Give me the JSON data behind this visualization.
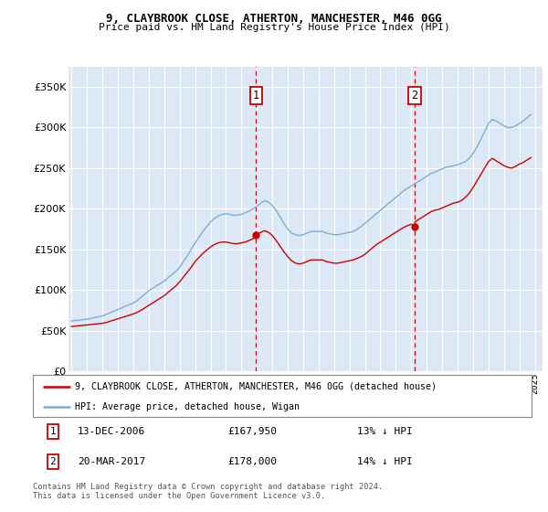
{
  "title1": "9, CLAYBROOK CLOSE, ATHERTON, MANCHESTER, M46 0GG",
  "title2": "Price paid vs. HM Land Registry's House Price Index (HPI)",
  "ylabel_values": [
    0,
    50000,
    100000,
    150000,
    200000,
    250000,
    300000,
    350000
  ],
  "ylim": [
    0,
    375000
  ],
  "xlim_start": 1994.8,
  "xlim_end": 2025.5,
  "background_color": "#ffffff",
  "plot_bg_color": "#dce8f5",
  "grid_color": "#ffffff",
  "hpi_color": "#7bafd4",
  "price_color": "#cc0000",
  "dashed_line_color": "#cc0000",
  "annotation_box_color": "#cc0000",
  "legend_label_red": "9, CLAYBROOK CLOSE, ATHERTON, MANCHESTER, M46 0GG (detached house)",
  "legend_label_blue": "HPI: Average price, detached house, Wigan",
  "purchase1_date": "13-DEC-2006",
  "purchase1_price": 167950,
  "purchase1_x": 2006.95,
  "purchase1_label": "1",
  "purchase1_hpi_pct": "13% ↓ HPI",
  "purchase2_date": "20-MAR-2017",
  "purchase2_price": 178000,
  "purchase2_x": 2017.22,
  "purchase2_label": "2",
  "purchase2_hpi_pct": "14% ↓ HPI",
  "footer1": "Contains HM Land Registry data © Crown copyright and database right 2024.",
  "footer2": "This data is licensed under the Open Government Licence v3.0.",
  "hpi_data_x": [
    1995.0,
    1995.25,
    1995.5,
    1995.75,
    1996.0,
    1996.25,
    1996.5,
    1996.75,
    1997.0,
    1997.25,
    1997.5,
    1997.75,
    1998.0,
    1998.25,
    1998.5,
    1998.75,
    1999.0,
    1999.25,
    1999.5,
    1999.75,
    2000.0,
    2000.25,
    2000.5,
    2000.75,
    2001.0,
    2001.25,
    2001.5,
    2001.75,
    2002.0,
    2002.25,
    2002.5,
    2002.75,
    2003.0,
    2003.25,
    2003.5,
    2003.75,
    2004.0,
    2004.25,
    2004.5,
    2004.75,
    2005.0,
    2005.25,
    2005.5,
    2005.75,
    2006.0,
    2006.25,
    2006.5,
    2006.75,
    2007.0,
    2007.25,
    2007.5,
    2007.75,
    2008.0,
    2008.25,
    2008.5,
    2008.75,
    2009.0,
    2009.25,
    2009.5,
    2009.75,
    2010.0,
    2010.25,
    2010.5,
    2010.75,
    2011.0,
    2011.25,
    2011.5,
    2011.75,
    2012.0,
    2012.25,
    2012.5,
    2012.75,
    2013.0,
    2013.25,
    2013.5,
    2013.75,
    2014.0,
    2014.25,
    2014.5,
    2014.75,
    2015.0,
    2015.25,
    2015.5,
    2015.75,
    2016.0,
    2016.25,
    2016.5,
    2016.75,
    2017.0,
    2017.25,
    2017.5,
    2017.75,
    2018.0,
    2018.25,
    2018.5,
    2018.75,
    2019.0,
    2019.25,
    2019.5,
    2019.75,
    2020.0,
    2020.25,
    2020.5,
    2020.75,
    2021.0,
    2021.25,
    2021.5,
    2021.75,
    2022.0,
    2022.25,
    2022.5,
    2022.75,
    2023.0,
    2023.25,
    2023.5,
    2023.75,
    2024.0,
    2024.25,
    2024.5,
    2024.75
  ],
  "hpi_data_y": [
    62000,
    62500,
    63000,
    63500,
    64000,
    65000,
    66000,
    67000,
    68000,
    70000,
    72000,
    74000,
    76000,
    78000,
    80000,
    82000,
    84000,
    87000,
    91000,
    95000,
    99000,
    102000,
    105000,
    108000,
    111000,
    115000,
    119000,
    123000,
    128000,
    135000,
    142000,
    150000,
    158000,
    165000,
    172000,
    178000,
    184000,
    188000,
    191000,
    193000,
    194000,
    193000,
    192000,
    192000,
    193000,
    195000,
    197000,
    200000,
    203000,
    207000,
    210000,
    208000,
    204000,
    198000,
    190000,
    182000,
    175000,
    170000,
    168000,
    167000,
    168000,
    170000,
    172000,
    172000,
    172000,
    172000,
    170000,
    169000,
    168000,
    168000,
    169000,
    170000,
    171000,
    172000,
    175000,
    178000,
    182000,
    186000,
    190000,
    194000,
    198000,
    202000,
    206000,
    210000,
    214000,
    218000,
    222000,
    225000,
    228000,
    231000,
    234000,
    237000,
    240000,
    243000,
    245000,
    247000,
    249000,
    251000,
    252000,
    253000,
    254000,
    256000,
    258000,
    262000,
    268000,
    276000,
    285000,
    295000,
    305000,
    310000,
    308000,
    305000,
    302000,
    300000,
    300000,
    302000,
    305000,
    308000,
    312000,
    316000
  ],
  "price_data_x": [
    1995.0,
    1995.25,
    1995.5,
    1995.75,
    1996.0,
    1996.25,
    1996.5,
    1996.75,
    1997.0,
    1997.25,
    1997.5,
    1997.75,
    1998.0,
    1998.25,
    1998.5,
    1998.75,
    1999.0,
    1999.25,
    1999.5,
    1999.75,
    2000.0,
    2000.25,
    2000.5,
    2000.75,
    2001.0,
    2001.25,
    2001.5,
    2001.75,
    2002.0,
    2002.25,
    2002.5,
    2002.75,
    2003.0,
    2003.25,
    2003.5,
    2003.75,
    2004.0,
    2004.25,
    2004.5,
    2004.75,
    2005.0,
    2005.25,
    2005.5,
    2005.75,
    2006.0,
    2006.25,
    2006.5,
    2006.75,
    2006.95,
    2007.0,
    2007.25,
    2007.5,
    2007.75,
    2008.0,
    2008.25,
    2008.5,
    2008.75,
    2009.0,
    2009.25,
    2009.5,
    2009.75,
    2010.0,
    2010.25,
    2010.5,
    2010.75,
    2011.0,
    2011.25,
    2011.5,
    2011.75,
    2012.0,
    2012.25,
    2012.5,
    2012.75,
    2013.0,
    2013.25,
    2013.5,
    2013.75,
    2014.0,
    2014.25,
    2014.5,
    2014.75,
    2015.0,
    2015.25,
    2015.5,
    2015.75,
    2016.0,
    2016.25,
    2016.5,
    2016.75,
    2017.0,
    2017.22,
    2017.25,
    2017.5,
    2017.75,
    2018.0,
    2018.25,
    2018.5,
    2018.75,
    2019.0,
    2019.25,
    2019.5,
    2019.75,
    2020.0,
    2020.25,
    2020.5,
    2020.75,
    2021.0,
    2021.25,
    2021.5,
    2021.75,
    2022.0,
    2022.25,
    2022.5,
    2022.75,
    2023.0,
    2023.25,
    2023.5,
    2023.75,
    2024.0,
    2024.25,
    2024.5,
    2024.75
  ],
  "price_data_y": [
    55000,
    55500,
    56000,
    56500,
    57000,
    57500,
    58000,
    58500,
    59000,
    60000,
    61500,
    63000,
    64500,
    66000,
    67500,
    69000,
    70500,
    72500,
    75000,
    78000,
    81000,
    84000,
    87000,
    90000,
    93000,
    97000,
    101000,
    105000,
    110000,
    116000,
    122000,
    128000,
    135000,
    140000,
    145000,
    149000,
    153000,
    156000,
    158000,
    159000,
    159000,
    158000,
    157000,
    157000,
    158000,
    159000,
    161000,
    163000,
    167950,
    168000,
    171000,
    173000,
    171000,
    167000,
    161000,
    154000,
    147000,
    141000,
    136000,
    133000,
    132000,
    133000,
    135000,
    137000,
    137000,
    137000,
    137000,
    135000,
    134000,
    133000,
    133000,
    134000,
    135000,
    136000,
    137000,
    139000,
    141000,
    144000,
    148000,
    152000,
    156000,
    159000,
    162000,
    165000,
    168000,
    171000,
    174000,
    177000,
    179000,
    181000,
    178000,
    184000,
    187000,
    190000,
    193000,
    196000,
    198000,
    199000,
    201000,
    203000,
    205000,
    207000,
    208000,
    210000,
    214000,
    219000,
    226000,
    234000,
    242000,
    250000,
    258000,
    262000,
    259000,
    256000,
    253000,
    251000,
    250000,
    252000,
    255000,
    257000,
    260000,
    263000
  ]
}
